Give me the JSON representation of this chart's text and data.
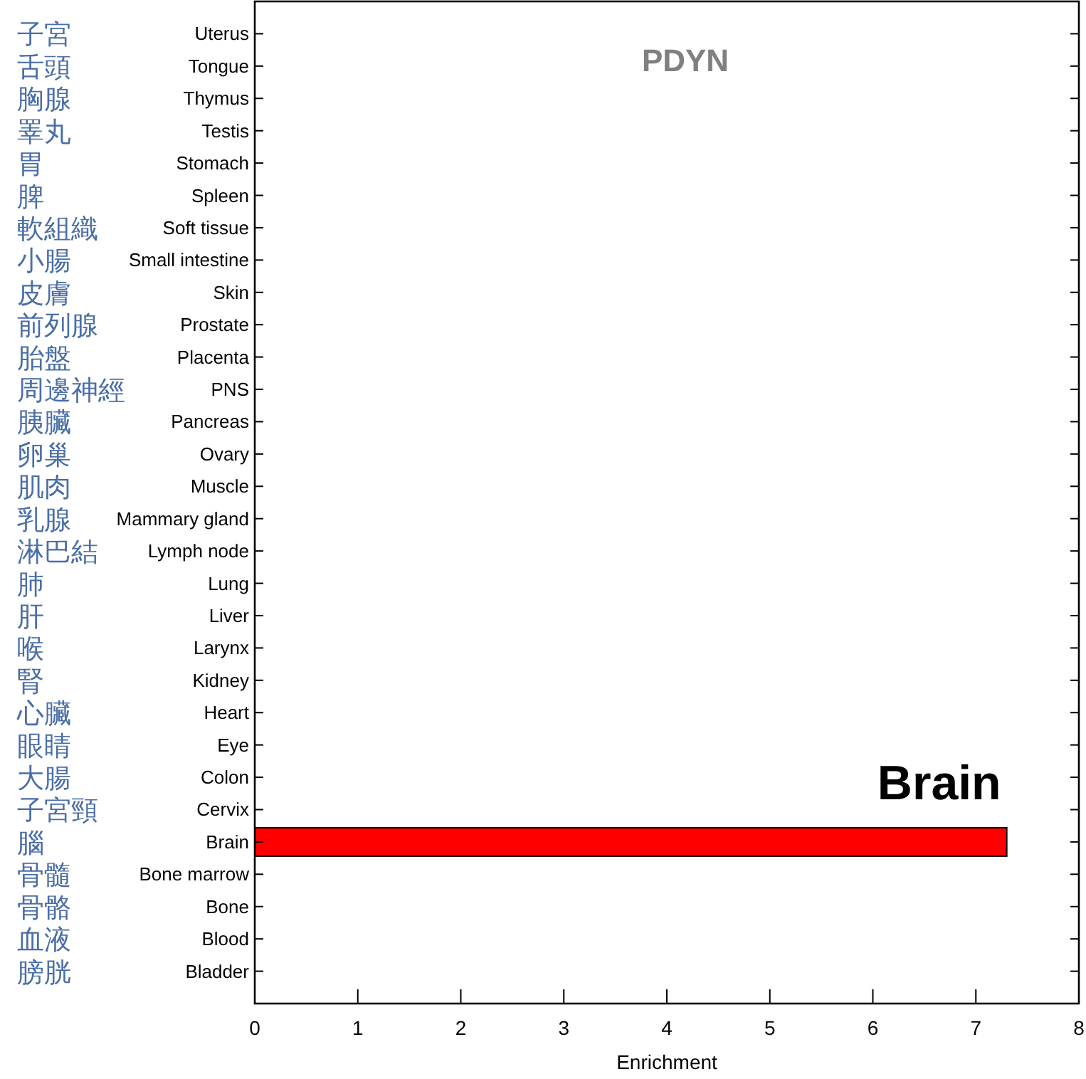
{
  "chart_data": {
    "type": "bar",
    "orientation": "horizontal",
    "title": "PDYN",
    "xlabel": "Enrichment",
    "categories": [
      "Uterus",
      "Tongue",
      "Thymus",
      "Testis",
      "Stomach",
      "Spleen",
      "Soft tissue",
      "Small intestine",
      "Skin",
      "Prostate",
      "Placenta",
      "PNS",
      "Pancreas",
      "Ovary",
      "Muscle",
      "Mammary gland",
      "Lymph node",
      "Lung",
      "Liver",
      "Larynx",
      "Kidney",
      "Heart",
      "Eye",
      "Colon",
      "Cervix",
      "Brain",
      "Bone marrow",
      "Bone",
      "Blood",
      "Bladder"
    ],
    "y2_categories": [
      "子宮",
      "舌頭",
      "胸腺",
      "睪丸",
      "胃",
      "脾",
      "軟組織",
      "小腸",
      "皮膚",
      "前列腺",
      "胎盤",
      "周邊神經",
      "胰臟",
      "卵巢",
      "肌肉",
      "乳腺",
      "淋巴結",
      "肺",
      "肝",
      "喉",
      "腎",
      "心臟",
      "眼睛",
      "大腸",
      "子宮頸",
      "腦",
      "骨髓",
      "骨骼",
      "血液",
      "膀胱"
    ],
    "values": [
      0,
      0,
      0,
      0,
      0,
      0,
      0,
      0,
      0,
      0,
      0,
      0,
      0,
      0,
      0,
      0,
      0,
      0,
      0,
      0,
      0,
      0,
      0,
      0,
      0,
      7.3,
      0,
      0,
      0,
      0
    ],
    "color": "#ff0000",
    "xlim": [
      0,
      8
    ],
    "xticks": [
      0,
      1,
      2,
      3,
      4,
      5,
      6,
      7,
      8
    ],
    "annotations": [
      {
        "text": "Brain",
        "x": 7.3,
        "y": "Brain"
      }
    ],
    "grid": false
  }
}
